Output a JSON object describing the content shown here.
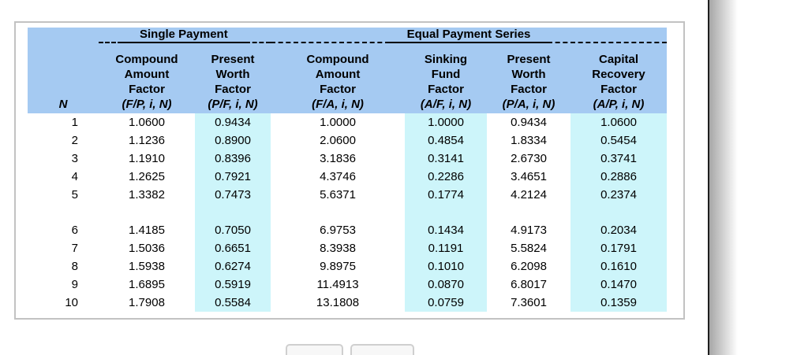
{
  "factor_table": {
    "groups": [
      {
        "id": "single-payment",
        "label": "Single Payment"
      },
      {
        "id": "equal-payment-series",
        "label": "Equal Payment Series"
      }
    ],
    "columns": [
      {
        "key": "n",
        "header_lines": [],
        "formula": "N",
        "highlight": false
      },
      {
        "key": "fp",
        "header_lines": [
          "Compound",
          "Amount",
          "Factor"
        ],
        "formula": "(F/P, i, N)",
        "highlight": false,
        "group": "Single Payment"
      },
      {
        "key": "pf",
        "header_lines": [
          "Present",
          "Worth",
          "Factor"
        ],
        "formula": "(P/F, i, N)",
        "highlight": true,
        "group": "Single Payment"
      },
      {
        "key": "fa",
        "header_lines": [
          "Compound",
          "Amount",
          "Factor"
        ],
        "formula": "(F/A, i, N)",
        "highlight": false,
        "group": "Equal Payment Series"
      },
      {
        "key": "af",
        "header_lines": [
          "Sinking",
          "Fund",
          "Factor"
        ],
        "formula": "(A/F, i, N)",
        "highlight": true,
        "group": "Equal Payment Series"
      },
      {
        "key": "pa",
        "header_lines": [
          "Present",
          "Worth",
          "Factor"
        ],
        "formula": "(P/A, i, N)",
        "highlight": false,
        "group": "Equal Payment Series"
      },
      {
        "key": "ap",
        "header_lines": [
          "Capital",
          "Recovery",
          "Factor"
        ],
        "formula": "(A/P, i, N)",
        "highlight": true,
        "group": "Equal Payment Series"
      }
    ],
    "rows": [
      {
        "n": "1",
        "fp": "1.0600",
        "pf": "0.9434",
        "fa": "1.0000",
        "af": "1.0000",
        "pa": "0.9434",
        "ap": "1.0600"
      },
      {
        "n": "2",
        "fp": "1.1236",
        "pf": "0.8900",
        "fa": "2.0600",
        "af": "0.4854",
        "pa": "1.8334",
        "ap": "0.5454"
      },
      {
        "n": "3",
        "fp": "1.1910",
        "pf": "0.8396",
        "fa": "3.1836",
        "af": "0.3141",
        "pa": "2.6730",
        "ap": "0.3741"
      },
      {
        "n": "4",
        "fp": "1.2625",
        "pf": "0.7921",
        "fa": "4.3746",
        "af": "0.2286",
        "pa": "3.4651",
        "ap": "0.2886"
      },
      {
        "n": "5",
        "fp": "1.3382",
        "pf": "0.7473",
        "fa": "5.6371",
        "af": "0.1774",
        "pa": "4.2124",
        "ap": "0.2374"
      },
      {
        "n": "6",
        "fp": "1.4185",
        "pf": "0.7050",
        "fa": "6.9753",
        "af": "0.1434",
        "pa": "4.9173",
        "ap": "0.2034"
      },
      {
        "n": "7",
        "fp": "1.5036",
        "pf": "0.6651",
        "fa": "8.3938",
        "af": "0.1191",
        "pa": "5.5824",
        "ap": "0.1791"
      },
      {
        "n": "8",
        "fp": "1.5938",
        "pf": "0.6274",
        "fa": "9.8975",
        "af": "0.1010",
        "pa": "6.2098",
        "ap": "0.1610"
      },
      {
        "n": "9",
        "fp": "1.6895",
        "pf": "0.5919",
        "fa": "11.4913",
        "af": "0.0870",
        "pa": "6.8017",
        "ap": "0.1470"
      },
      {
        "n": "10",
        "fp": "1.7908",
        "pf": "0.5584",
        "fa": "13.1808",
        "af": "0.0759",
        "pa": "7.3601",
        "ap": "0.1359"
      }
    ],
    "gap_after_row": "5",
    "colors": {
      "header_bg": "#A5CAF2",
      "highlight_bg": "#CDF5FA",
      "box_border": "#C2C2C2",
      "text": "#000000"
    }
  },
  "footer_buttons": [
    {
      "label": ""
    },
    {
      "label": ""
    }
  ],
  "page_edge": {
    "line_color": "#1F1F1F"
  }
}
